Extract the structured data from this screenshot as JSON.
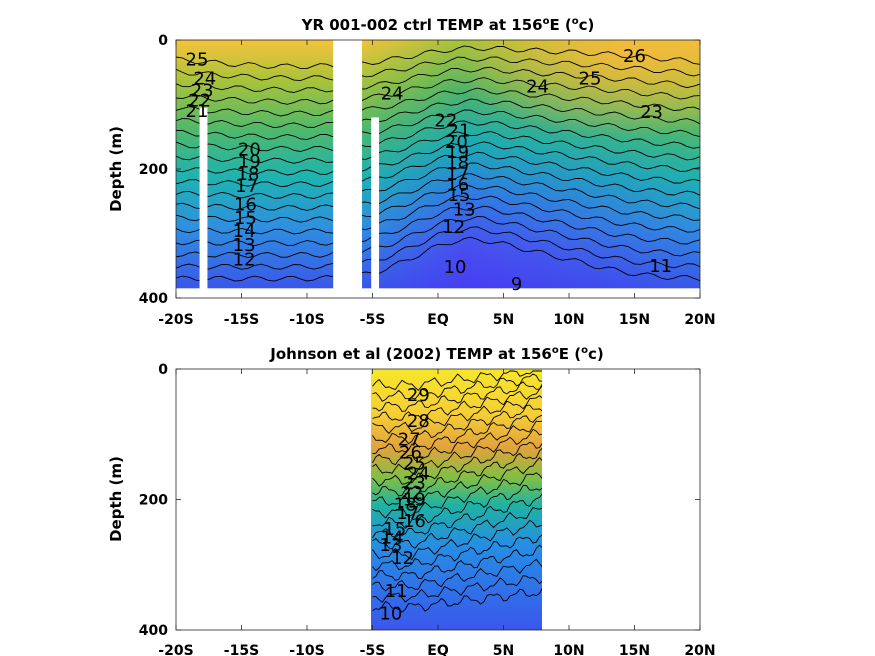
{
  "chart_data": [
    {
      "type": "heatmap",
      "title_main": "YR 001-002 ctrl TEMP at 156",
      "title_sup": "o",
      "title_end": "E (",
      "title_unit": "c)",
      "ylabel": "Depth (m)",
      "xlabel": "",
      "xlim": [
        -20,
        20
      ],
      "ylim": [
        0,
        400
      ],
      "y_inverted": true,
      "x_ticks": [
        -20,
        -15,
        -10,
        -5,
        0,
        5,
        10,
        15,
        20
      ],
      "x_tick_labels": [
        "-20S",
        "-15S",
        "-10S",
        "-5S",
        "EQ",
        "5N",
        "10N",
        "15N",
        "20N"
      ],
      "y_ticks": [
        0,
        200,
        400
      ],
      "y_tick_labels": [
        "0",
        "200",
        "400"
      ],
      "data_extent": {
        "x": [
          -20,
          20
        ],
        "y": [
          0,
          385
        ]
      },
      "gaps": [
        {
          "x": [
            -18.2,
            -17.6
          ],
          "y": [
            105,
            385
          ]
        },
        {
          "x": [
            -8,
            -5.8
          ],
          "y": [
            0,
            385
          ]
        },
        {
          "x": [
            -5.1,
            -4.5
          ],
          "y": [
            120,
            385
          ]
        }
      ],
      "surface_temp_range": [
        25,
        26.5
      ],
      "contour_levels": [
        9,
        10,
        11,
        12,
        13,
        14,
        15,
        16,
        17,
        18,
        19,
        20,
        21,
        22,
        23,
        24,
        25,
        26
      ],
      "contour_labels": [
        {
          "text": "26",
          "x": 15,
          "y": 25
        },
        {
          "text": "25",
          "x": 11.6,
          "y": 60
        },
        {
          "text": "24",
          "x": 7.6,
          "y": 72
        },
        {
          "text": "23",
          "x": 16.3,
          "y": 112
        },
        {
          "text": "24",
          "x": -3.5,
          "y": 83
        },
        {
          "text": "25",
          "x": -18.4,
          "y": 30
        },
        {
          "text": "24",
          "x": -17.8,
          "y": 60
        },
        {
          "text": "23",
          "x": -18.0,
          "y": 78
        },
        {
          "text": "22",
          "x": -18.2,
          "y": 94
        },
        {
          "text": "21",
          "x": -18.4,
          "y": 110
        },
        {
          "text": "20",
          "x": -14.4,
          "y": 170
        },
        {
          "text": "19",
          "x": -14.4,
          "y": 188
        },
        {
          "text": "18",
          "x": -14.5,
          "y": 208
        },
        {
          "text": "17",
          "x": -14.6,
          "y": 226
        },
        {
          "text": "16",
          "x": -14.7,
          "y": 255
        },
        {
          "text": "15",
          "x": -14.7,
          "y": 276
        },
        {
          "text": "14",
          "x": -14.8,
          "y": 296
        },
        {
          "text": "13",
          "x": -14.8,
          "y": 318
        },
        {
          "text": "12",
          "x": -14.8,
          "y": 340
        },
        {
          "text": "22",
          "x": 0.6,
          "y": 125
        },
        {
          "text": "21",
          "x": 1.6,
          "y": 140
        },
        {
          "text": "20",
          "x": 1.4,
          "y": 158
        },
        {
          "text": "19",
          "x": 1.5,
          "y": 174
        },
        {
          "text": "18",
          "x": 1.5,
          "y": 190
        },
        {
          "text": "17",
          "x": 1.5,
          "y": 208
        },
        {
          "text": "16",
          "x": 1.5,
          "y": 224
        },
        {
          "text": "15",
          "x": 1.6,
          "y": 240
        },
        {
          "text": "13",
          "x": 2.0,
          "y": 263
        },
        {
          "text": "12",
          "x": 1.2,
          "y": 290
        },
        {
          "text": "10",
          "x": 1.3,
          "y": 352
        },
        {
          "text": "9",
          "x": 6.0,
          "y": 378
        },
        {
          "text": "11",
          "x": 17.0,
          "y": 350
        }
      ]
    },
    {
      "type": "heatmap",
      "title_main": "Johnson et al (2002) TEMP at 156",
      "title_sup": "o",
      "title_end": "E (",
      "title_unit": "c)",
      "ylabel": "Depth (m)",
      "xlabel": "",
      "xlim": [
        -20,
        20
      ],
      "ylim": [
        0,
        400
      ],
      "y_inverted": true,
      "x_ticks": [
        -20,
        -15,
        -10,
        -5,
        0,
        5,
        10,
        15,
        20
      ],
      "x_tick_labels": [
        "-20S",
        "-15S",
        "-10S",
        "-5S",
        "EQ",
        "5N",
        "10N",
        "15N",
        "20N"
      ],
      "y_ticks": [
        0,
        200,
        400
      ],
      "y_tick_labels": [
        "0",
        "200",
        "400"
      ],
      "data_extent": {
        "x": [
          -5,
          8
        ],
        "y": [
          0,
          400
        ]
      },
      "surface_temp_range": [
        29,
        30
      ],
      "contour_levels": [
        10,
        11,
        12,
        13,
        14,
        15,
        16,
        17,
        18,
        19,
        20,
        21,
        22,
        23,
        24,
        25,
        26,
        27,
        28,
        29
      ],
      "contour_labels": [
        {
          "text": "29",
          "x": -1.5,
          "y": 40
        },
        {
          "text": "28",
          "x": -1.5,
          "y": 80
        },
        {
          "text": "27",
          "x": -2.2,
          "y": 108
        },
        {
          "text": "26",
          "x": -2.1,
          "y": 128
        },
        {
          "text": "25",
          "x": -1.8,
          "y": 145
        },
        {
          "text": "24",
          "x": -1.5,
          "y": 160
        },
        {
          "text": "23",
          "x": -1.8,
          "y": 175
        },
        {
          "text": "22",
          "x": -2.0,
          "y": 190
        },
        {
          "text": "19",
          "x": -1.8,
          "y": 200
        },
        {
          "text": "18",
          "x": -2.5,
          "y": 208
        },
        {
          "text": "17",
          "x": -2.3,
          "y": 221
        },
        {
          "text": "16",
          "x": -1.8,
          "y": 233
        },
        {
          "text": "15",
          "x": -3.3,
          "y": 245
        },
        {
          "text": "14",
          "x": -3.5,
          "y": 258
        },
        {
          "text": "13",
          "x": -3.6,
          "y": 270
        },
        {
          "text": "12",
          "x": -2.7,
          "y": 290
        },
        {
          "text": "11",
          "x": -3.2,
          "y": 340
        },
        {
          "text": "10",
          "x": -3.6,
          "y": 375
        }
      ]
    }
  ]
}
